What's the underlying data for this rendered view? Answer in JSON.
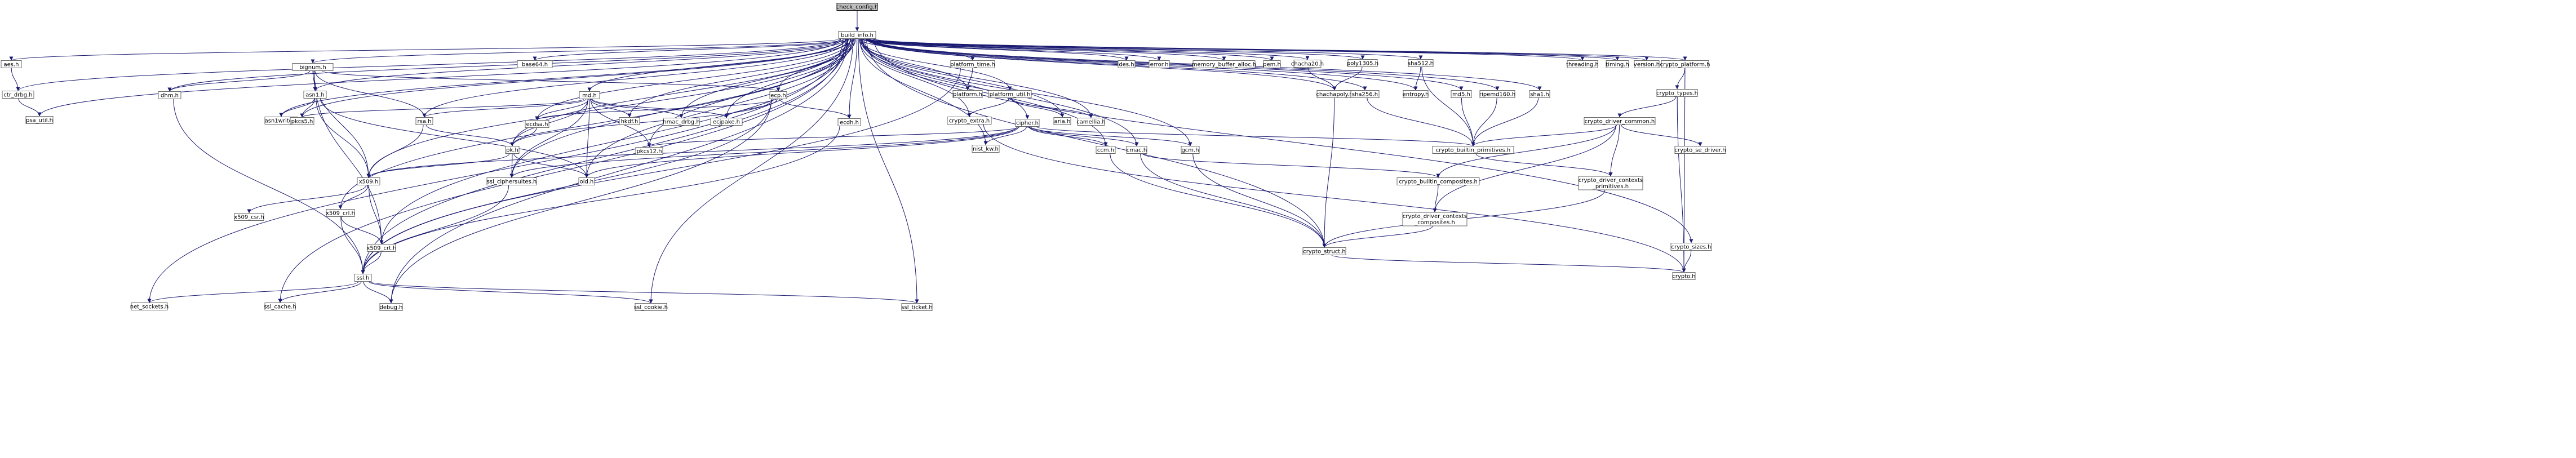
{
  "colors": {
    "edge": "#191970",
    "node_border": "#666666",
    "root_fill": "#bfbfbf",
    "node_fill": "#ffffff"
  },
  "nodes": [
    {
      "id": "check_config",
      "label": "check_config.h",
      "root": true
    },
    {
      "id": "build_info",
      "label": "build_info.h"
    },
    {
      "id": "aes",
      "label": "aes.h"
    },
    {
      "id": "ctr_drbg",
      "label": "ctr_drbg.h"
    },
    {
      "id": "psa_util",
      "label": "psa_util.h"
    },
    {
      "id": "bignum",
      "label": "bignum.h"
    },
    {
      "id": "dhm",
      "label": "dhm.h"
    },
    {
      "id": "asn1",
      "label": "asn1.h"
    },
    {
      "id": "asn1write",
      "label": "asn1write.h"
    },
    {
      "id": "pkcs5",
      "label": "pkcs5.h"
    },
    {
      "id": "rsa",
      "label": "rsa.h"
    },
    {
      "id": "md",
      "label": "md.h"
    },
    {
      "id": "ecp",
      "label": "ecp.h"
    },
    {
      "id": "ecdsa",
      "label": "ecdsa.h"
    },
    {
      "id": "hkdf",
      "label": "hkdf.h"
    },
    {
      "id": "hmac_drbg",
      "label": "hmac_drbg.h"
    },
    {
      "id": "ecjpake",
      "label": "ecjpake.h"
    },
    {
      "id": "ecdh",
      "label": "ecdh.h"
    },
    {
      "id": "base64",
      "label": "base64.h"
    },
    {
      "id": "platform_time",
      "label": "platform_time.h"
    },
    {
      "id": "platform",
      "label": "platform.h"
    },
    {
      "id": "platform_util",
      "label": "platform_util.h"
    },
    {
      "id": "crypto_extra",
      "label": "crypto_extra.h"
    },
    {
      "id": "aria",
      "label": "aria.h"
    },
    {
      "id": "camellia",
      "label": "camellia.h"
    },
    {
      "id": "des",
      "label": "des.h"
    },
    {
      "id": "error",
      "label": "error.h"
    },
    {
      "id": "memory_buffer_alloc",
      "label": "memory_buffer_alloc.h"
    },
    {
      "id": "pem",
      "label": "pem.h"
    },
    {
      "id": "chacha20",
      "label": "chacha20.h"
    },
    {
      "id": "chachapoly",
      "label": "chachapoly.h"
    },
    {
      "id": "poly1305",
      "label": "poly1305.h"
    },
    {
      "id": "sha256",
      "label": "sha256.h"
    },
    {
      "id": "sha512",
      "label": "sha512.h"
    },
    {
      "id": "entropy",
      "label": "entropy.h"
    },
    {
      "id": "md5",
      "label": "md5.h"
    },
    {
      "id": "ripemd160",
      "label": "ripemd160.h"
    },
    {
      "id": "sha1",
      "label": "sha1.h"
    },
    {
      "id": "threading",
      "label": "threading.h"
    },
    {
      "id": "timing",
      "label": "timing.h"
    },
    {
      "id": "version",
      "label": "version.h"
    },
    {
      "id": "crypto_platform",
      "label": "crypto_platform.h"
    },
    {
      "id": "crypto_types",
      "label": "crypto_types.h"
    },
    {
      "id": "crypto_driver_common",
      "label": "crypto_driver_common.h"
    },
    {
      "id": "crypto_se_driver",
      "label": "crypto_se_driver.h"
    },
    {
      "id": "crypto_builtin_primitives",
      "label": "crypto_builtin_primitives.h"
    },
    {
      "id": "crypto_driver_contexts_primitives",
      "label": "crypto_driver_contexts\n_primitives.h"
    },
    {
      "id": "crypto_builtin_composites",
      "label": "crypto_builtin_composites.h"
    },
    {
      "id": "crypto_driver_contexts_composites",
      "label": "crypto_driver_contexts\n_composites.h"
    },
    {
      "id": "crypto_struct",
      "label": "crypto_struct.h"
    },
    {
      "id": "crypto_sizes",
      "label": "crypto_sizes.h"
    },
    {
      "id": "crypto",
      "label": "crypto.h"
    },
    {
      "id": "cipher",
      "label": "cipher.h"
    },
    {
      "id": "nist_kw",
      "label": "nist_kw.h"
    },
    {
      "id": "ccm",
      "label": "ccm.h"
    },
    {
      "id": "cmac",
      "label": "cmac.h"
    },
    {
      "id": "gcm",
      "label": "gcm.h"
    },
    {
      "id": "pk",
      "label": "pk.h"
    },
    {
      "id": "pkcs12",
      "label": "pkcs12.h"
    },
    {
      "id": "x509",
      "label": "x509.h"
    },
    {
      "id": "x509_csr",
      "label": "x509_csr.h"
    },
    {
      "id": "x509_crl",
      "label": "x509_crl.h"
    },
    {
      "id": "x509_crt",
      "label": "x509_crt.h"
    },
    {
      "id": "ssl_ciphersuites",
      "label": "ssl_ciphersuites.h"
    },
    {
      "id": "oid",
      "label": "oid.h"
    },
    {
      "id": "ssl",
      "label": "ssl.h"
    },
    {
      "id": "net_sockets",
      "label": "net_sockets.h"
    },
    {
      "id": "ssl_cache",
      "label": "ssl_cache.h"
    },
    {
      "id": "debug",
      "label": "debug.h"
    },
    {
      "id": "ssl_cookie",
      "label": "ssl_cookie.h"
    },
    {
      "id": "ssl_ticket",
      "label": "ssl_ticket.h"
    }
  ],
  "edges": [
    [
      "check_config",
      "build_info"
    ],
    [
      "build_info",
      "aes"
    ],
    [
      "build_info",
      "ctr_drbg"
    ],
    [
      "build_info",
      "psa_util"
    ],
    [
      "build_info",
      "bignum"
    ],
    [
      "build_info",
      "dhm"
    ],
    [
      "build_info",
      "asn1"
    ],
    [
      "build_info",
      "asn1write"
    ],
    [
      "build_info",
      "pkcs5"
    ],
    [
      "build_info",
      "rsa"
    ],
    [
      "build_info",
      "md"
    ],
    [
      "build_info",
      "ecp"
    ],
    [
      "build_info",
      "ecdsa"
    ],
    [
      "build_info",
      "hkdf"
    ],
    [
      "build_info",
      "hmac_drbg"
    ],
    [
      "build_info",
      "ecjpake"
    ],
    [
      "build_info",
      "ecdh"
    ],
    [
      "build_info",
      "base64"
    ],
    [
      "build_info",
      "platform_time"
    ],
    [
      "build_info",
      "platform"
    ],
    [
      "build_info",
      "platform_util"
    ],
    [
      "build_info",
      "crypto_extra"
    ],
    [
      "build_info",
      "aria"
    ],
    [
      "build_info",
      "camellia"
    ],
    [
      "build_info",
      "des"
    ],
    [
      "build_info",
      "error"
    ],
    [
      "build_info",
      "memory_buffer_alloc"
    ],
    [
      "build_info",
      "pem"
    ],
    [
      "build_info",
      "chacha20"
    ],
    [
      "build_info",
      "chachapoly"
    ],
    [
      "build_info",
      "poly1305"
    ],
    [
      "build_info",
      "sha256"
    ],
    [
      "build_info",
      "sha512"
    ],
    [
      "build_info",
      "entropy"
    ],
    [
      "build_info",
      "md5"
    ],
    [
      "build_info",
      "ripemd160"
    ],
    [
      "build_info",
      "sha1"
    ],
    [
      "build_info",
      "threading"
    ],
    [
      "build_info",
      "timing"
    ],
    [
      "build_info",
      "version"
    ],
    [
      "build_info",
      "crypto_platform"
    ],
    [
      "build_info",
      "crypto_sizes"
    ],
    [
      "build_info",
      "cipher"
    ],
    [
      "build_info",
      "nist_kw"
    ],
    [
      "build_info",
      "ccm"
    ],
    [
      "build_info",
      "cmac"
    ],
    [
      "build_info",
      "gcm"
    ],
    [
      "build_info",
      "pk"
    ],
    [
      "build_info",
      "pkcs12"
    ],
    [
      "build_info",
      "x509"
    ],
    [
      "build_info",
      "x509_crt"
    ],
    [
      "build_info",
      "ssl_ciphersuites"
    ],
    [
      "build_info",
      "oid"
    ],
    [
      "build_info",
      "ssl"
    ],
    [
      "build_info",
      "net_sockets"
    ],
    [
      "build_info",
      "ssl_cache"
    ],
    [
      "build_info",
      "debug"
    ],
    [
      "build_info",
      "ssl_cookie"
    ],
    [
      "build_info",
      "ssl_ticket"
    ],
    [
      "build_info",
      "crypto_struct"
    ],
    [
      "build_info",
      "x509_crl"
    ],
    [
      "aes",
      "ctr_drbg"
    ],
    [
      "ctr_drbg",
      "psa_util"
    ],
    [
      "bignum",
      "dhm"
    ],
    [
      "bignum",
      "asn1"
    ],
    [
      "bignum",
      "rsa"
    ],
    [
      "bignum",
      "ecp"
    ],
    [
      "bignum",
      "x509"
    ],
    [
      "bignum",
      "x509_crt"
    ],
    [
      "dhm",
      "ssl"
    ],
    [
      "asn1",
      "asn1write"
    ],
    [
      "asn1",
      "pkcs5"
    ],
    [
      "asn1",
      "x509"
    ],
    [
      "asn1",
      "oid"
    ],
    [
      "md",
      "rsa"
    ],
    [
      "md",
      "ecdsa"
    ],
    [
      "md",
      "hkdf"
    ],
    [
      "md",
      "hmac_drbg"
    ],
    [
      "md",
      "ecjpake"
    ],
    [
      "md",
      "pk"
    ],
    [
      "md",
      "pkcs12"
    ],
    [
      "md",
      "oid"
    ],
    [
      "md",
      "ssl_ciphersuites"
    ],
    [
      "md",
      "pkcs5"
    ],
    [
      "ecp",
      "ecdsa"
    ],
    [
      "ecp",
      "ecjpake"
    ],
    [
      "ecp",
      "ecdh"
    ],
    [
      "ecp",
      "pk"
    ],
    [
      "ecp",
      "ssl"
    ],
    [
      "ecp",
      "debug"
    ],
    [
      "rsa",
      "pk"
    ],
    [
      "rsa",
      "x509"
    ],
    [
      "ecdsa",
      "pk"
    ],
    [
      "ecdh",
      "ssl"
    ],
    [
      "platform_time",
      "platform"
    ],
    [
      "platform_time",
      "ssl"
    ],
    [
      "platform_util",
      "crypto_extra"
    ],
    [
      "platform_util",
      "aria"
    ],
    [
      "platform_util",
      "camellia"
    ],
    [
      "crypto_extra",
      "crypto"
    ],
    [
      "pk",
      "x509"
    ],
    [
      "pk",
      "ssl_ciphersuites"
    ],
    [
      "pk",
      "oid"
    ],
    [
      "cipher",
      "pkcs12"
    ],
    [
      "cipher",
      "nist_kw"
    ],
    [
      "cipher",
      "ccm"
    ],
    [
      "cipher",
      "cmac"
    ],
    [
      "cipher",
      "gcm"
    ],
    [
      "cipher",
      "ssl_ciphersuites"
    ],
    [
      "cipher",
      "oid"
    ],
    [
      "cipher",
      "x509"
    ],
    [
      "cipher",
      "crypto_builtin_primitives"
    ],
    [
      "ccm",
      "crypto_struct"
    ],
    [
      "cmac",
      "crypto_builtin_composites"
    ],
    [
      "cmac",
      "crypto_struct"
    ],
    [
      "gcm",
      "crypto_struct"
    ],
    [
      "chacha20",
      "chachapoly"
    ],
    [
      "poly1305",
      "chachapoly"
    ],
    [
      "chachapoly",
      "crypto_struct"
    ],
    [
      "sha256",
      "crypto_builtin_primitives"
    ],
    [
      "sha512",
      "entropy"
    ],
    [
      "sha512",
      "crypto_builtin_primitives"
    ],
    [
      "md5",
      "crypto_builtin_primitives"
    ],
    [
      "ripemd160",
      "crypto_builtin_primitives"
    ],
    [
      "sha1",
      "crypto_builtin_primitives"
    ],
    [
      "crypto_platform",
      "crypto_types"
    ],
    [
      "crypto_platform",
      "crypto"
    ],
    [
      "crypto_types",
      "crypto_driver_common"
    ],
    [
      "crypto_types",
      "crypto"
    ],
    [
      "crypto_driver_common",
      "crypto_builtin_primitives"
    ],
    [
      "crypto_driver_common",
      "crypto_se_driver"
    ],
    [
      "crypto_driver_common",
      "crypto_driver_contexts_primitives"
    ],
    [
      "crypto_driver_common",
      "crypto_builtin_composites"
    ],
    [
      "crypto_driver_common",
      "crypto_driver_contexts_composites"
    ],
    [
      "crypto_builtin_primitives",
      "crypto_driver_contexts_primitives"
    ],
    [
      "crypto_driver_contexts_primitives",
      "crypto_struct"
    ],
    [
      "crypto_builtin_composites",
      "crypto_driver_contexts_composites"
    ],
    [
      "crypto_driver_contexts_composites",
      "crypto_struct"
    ],
    [
      "crypto_struct",
      "crypto"
    ],
    [
      "crypto_sizes",
      "crypto"
    ],
    [
      "x509",
      "x509_csr"
    ],
    [
      "x509",
      "x509_crl"
    ],
    [
      "x509",
      "x509_crt"
    ],
    [
      "x509_crl",
      "x509_crt"
    ],
    [
      "x509_crl",
      "ssl"
    ],
    [
      "x509_crt",
      "ssl"
    ],
    [
      "ssl_ciphersuites",
      "ssl"
    ],
    [
      "ssl",
      "net_sockets"
    ],
    [
      "ssl",
      "ssl_cache"
    ],
    [
      "ssl",
      "debug"
    ],
    [
      "ssl",
      "ssl_cookie"
    ],
    [
      "ssl",
      "ssl_ticket"
    ]
  ]
}
